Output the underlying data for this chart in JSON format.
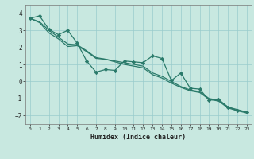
{
  "xlabel": "Humidex (Indice chaleur)",
  "xlim": [
    -0.5,
    23.5
  ],
  "ylim": [
    -2.5,
    4.5
  ],
  "xticks": [
    0,
    1,
    2,
    3,
    4,
    5,
    6,
    7,
    8,
    9,
    10,
    11,
    12,
    13,
    14,
    15,
    16,
    17,
    18,
    19,
    20,
    21,
    22,
    23
  ],
  "yticks": [
    -2,
    -1,
    0,
    1,
    2,
    3,
    4
  ],
  "bg_color": "#c8e8e0",
  "line_color": "#2a7a6a",
  "grid_color": "#99cccc",
  "line1_x": [
    0,
    1,
    2,
    3,
    4,
    5,
    6,
    7,
    8,
    9,
    10,
    11,
    12,
    13,
    14,
    15,
    16,
    17,
    18,
    19,
    20,
    21,
    22,
    23
  ],
  "line1_y": [
    3.7,
    3.85,
    3.05,
    2.75,
    3.0,
    2.25,
    1.2,
    0.55,
    0.7,
    0.65,
    1.2,
    1.15,
    1.1,
    1.5,
    1.35,
    0.05,
    0.5,
    -0.4,
    -0.45,
    -1.1,
    -1.05,
    -1.5,
    -1.7,
    -1.8
  ],
  "line2_x": [
    0,
    1,
    2,
    3,
    4,
    5,
    6,
    7,
    8,
    9,
    10,
    11,
    12,
    13,
    14,
    15,
    16,
    17,
    18,
    19,
    20,
    21,
    22,
    23
  ],
  "line2_y": [
    3.7,
    3.5,
    3.0,
    2.6,
    2.2,
    2.15,
    1.8,
    1.4,
    1.3,
    1.2,
    1.1,
    1.0,
    0.9,
    0.5,
    0.3,
    0.0,
    -0.3,
    -0.5,
    -0.6,
    -1.0,
    -1.1,
    -1.5,
    -1.65,
    -1.8
  ],
  "line3_x": [
    0,
    1,
    2,
    3,
    4,
    5,
    6,
    7,
    8,
    9,
    10,
    11,
    12,
    13,
    14,
    15,
    16,
    17,
    18,
    19,
    20,
    21,
    22,
    23
  ],
  "line3_y": [
    3.7,
    3.45,
    2.85,
    2.5,
    2.05,
    2.1,
    1.75,
    1.35,
    1.3,
    1.15,
    1.0,
    0.9,
    0.8,
    0.4,
    0.2,
    -0.1,
    -0.35,
    -0.55,
    -0.65,
    -1.05,
    -1.15,
    -1.55,
    -1.72,
    -1.85
  ]
}
